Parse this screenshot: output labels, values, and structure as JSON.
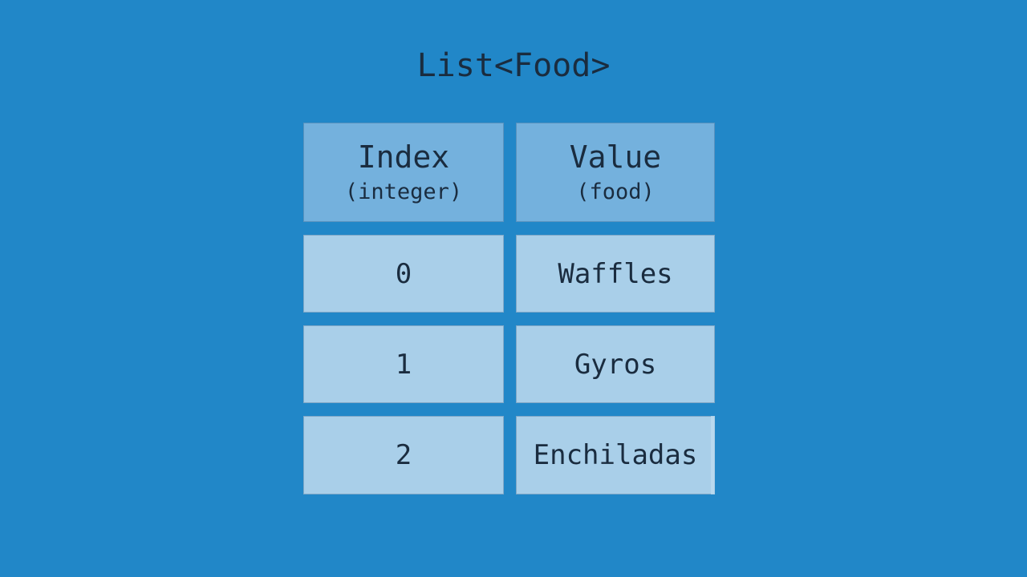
{
  "title": "List<Food>",
  "table": {
    "columns": [
      {
        "label": "Index",
        "type_note": "(integer)"
      },
      {
        "label": "Value",
        "type_note": "(food)"
      }
    ],
    "rows": [
      {
        "index": "0",
        "value": "Waffles"
      },
      {
        "index": "1",
        "value": "Gyros"
      },
      {
        "index": "2",
        "value": "Enchiladas"
      }
    ]
  },
  "colors": {
    "background": "#2187c8",
    "header_cell": "#74b1dd",
    "data_cell": "#a9cfe9",
    "text": "#1a2c3f",
    "edge_highlight": "#bedcf0"
  }
}
